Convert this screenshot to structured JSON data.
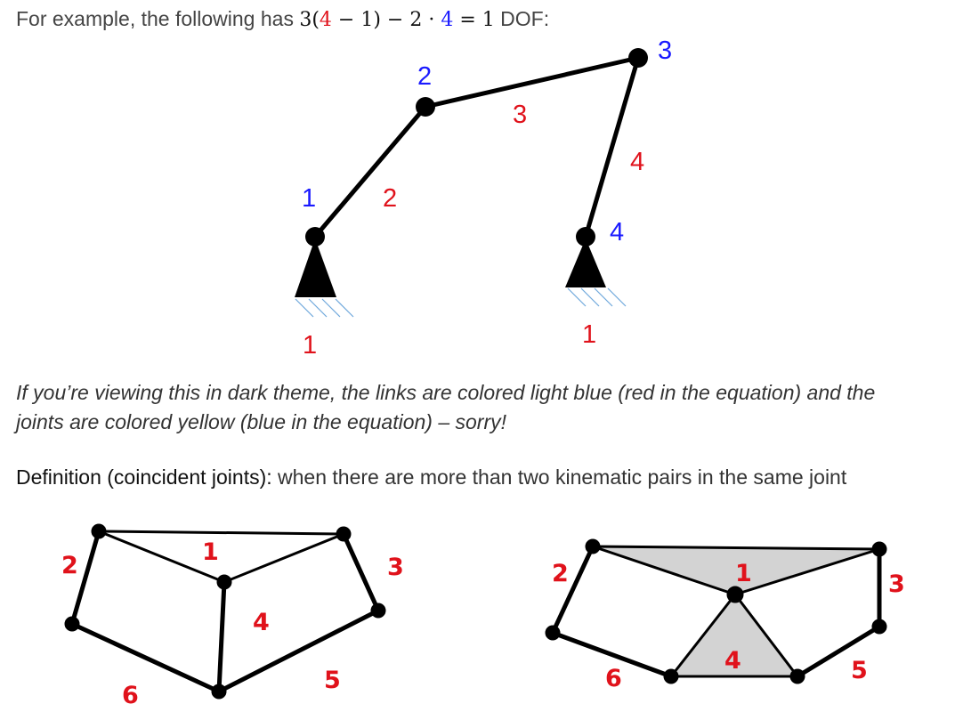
{
  "intro": {
    "prefix": "For example, the following has",
    "eq_three": "3(",
    "eq_links": "4",
    "eq_mid": " − 1) − 2 · ",
    "eq_joints": "4",
    "eq_end": " = 1",
    "suffix": "DOF:"
  },
  "colors": {
    "joint_label": "#1a1aff",
    "link_label": "#e0121b",
    "ground_hatch": "#6fa8dc",
    "coincident_fill": "#d3d3d3"
  },
  "mechanism": {
    "joint_labels": [
      "1",
      "2",
      "3",
      "4"
    ],
    "link_labels": [
      "2",
      "3",
      "4"
    ],
    "ground_labels": [
      "1",
      "1"
    ]
  },
  "note": {
    "line1": "If you’re viewing this in dark theme, the links are colored light blue (red in the equation) and the",
    "line2": "joints are colored yellow (blue in the equation) – sorry!"
  },
  "definition": {
    "label": "Definition (coincident joints):",
    "text": " when there are more than two kinematic pairs in the same joint"
  },
  "diagram_left": {
    "labels": [
      "1",
      "2",
      "3",
      "4",
      "5",
      "6"
    ]
  },
  "diagram_right": {
    "labels": [
      "1",
      "2",
      "3",
      "4",
      "5",
      "6"
    ]
  }
}
